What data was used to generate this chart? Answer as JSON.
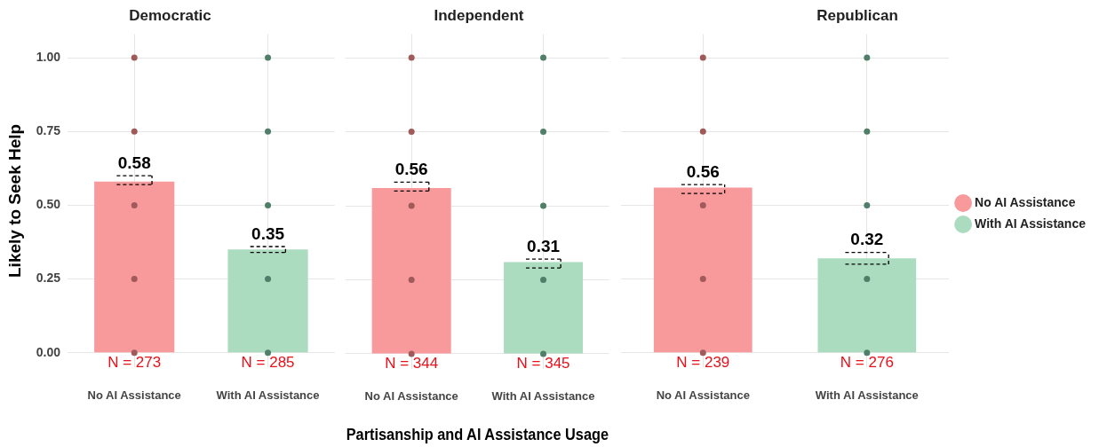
{
  "chart_data": [
    {
      "type": "bar",
      "title": "Democratic",
      "ylabel": "Likely to Seek Help",
      "categories": [
        "No AI Assistance",
        "With AI Assistance"
      ],
      "ylim": [
        -0.05,
        1.08
      ],
      "yticks": [
        {
          "value": 0,
          "label": "0.00"
        },
        {
          "value": 0.25,
          "label": "0.25"
        },
        {
          "value": 0.5,
          "label": "0.50"
        },
        {
          "value": 0.75,
          "label": "0.75"
        },
        {
          "value": 1,
          "label": "1.00"
        }
      ],
      "grid": true,
      "marker": "circle",
      "series": [
        {
          "type": "bar",
          "color": "#f8999b",
          "values": [
            0.58,
            null
          ],
          "value_labels": [
            "0.58",
            null
          ],
          "errors": [
            [
              0.57,
              0.6
            ],
            null
          ]
        },
        {
          "type": "bar",
          "color": "#acdcc0",
          "values": [
            null,
            0.35
          ],
          "value_labels": [
            null,
            "0.35"
          ],
          "errors": [
            null,
            [
              0.34,
              0.36
            ]
          ]
        },
        {
          "type": "scatter",
          "color": "#a05a5a",
          "x": [
            "No AI Assistance",
            "No AI Assistance",
            "No AI Assistance",
            "No AI Assistance",
            "No AI Assistance"
          ],
          "values": [
            1,
            0.75,
            0.5,
            0.25,
            0
          ]
        },
        {
          "type": "scatter",
          "color": "#4f7f68",
          "x": [
            "With AI Assistance",
            "With AI Assistance",
            "With AI Assistance",
            "With AI Assistance",
            "With AI Assistance"
          ],
          "values": [
            1,
            0.75,
            0.5,
            0.25,
            0
          ]
        }
      ],
      "annotations": [
        {
          "text": "N = 273",
          "x": "No AI Assistance",
          "y": 0
        },
        {
          "text": "N = 285",
          "x": "With AI Assistance",
          "y": 0
        }
      ]
    },
    {
      "type": "bar",
      "title": "Independent",
      "xlabel": "Partisanship and AI Assistance Usage",
      "categories": [
        "No AI Assistance",
        "With AI Assistance"
      ],
      "ylim": [
        -0.05,
        1.08
      ],
      "yticks": [
        0,
        0.25,
        0.5,
        0.75,
        1
      ],
      "grid": true,
      "marker": "circle",
      "tick_labels": "x",
      "series": [
        {
          "type": "bar",
          "color": "#f8999b",
          "values": [
            0.56,
            null
          ],
          "value_labels": [
            "0.56",
            null
          ],
          "errors": [
            [
              0.55,
              0.58
            ],
            null
          ]
        },
        {
          "type": "bar",
          "color": "#acdcc0",
          "values": [
            null,
            0.31
          ],
          "value_labels": [
            null,
            "0.31"
          ],
          "errors": [
            null,
            [
              0.29,
              0.32
            ]
          ]
        },
        {
          "type": "scatter",
          "color": "#a05a5a",
          "x": [
            "No AI Assistance",
            "No AI Assistance",
            "No AI Assistance",
            "No AI Assistance",
            "No AI Assistance"
          ],
          "values": [
            1,
            0.75,
            0.5,
            0.25,
            0
          ]
        },
        {
          "type": "scatter",
          "color": "#4f7f68",
          "x": [
            "With AI Assistance",
            "With AI Assistance",
            "With AI Assistance",
            "With AI Assistance",
            "With AI Assistance"
          ],
          "values": [
            1,
            0.75,
            0.5,
            0.25,
            0
          ]
        }
      ],
      "annotations": [
        {
          "text": "N = 344",
          "x": "No AI Assistance",
          "y": 0
        },
        {
          "text": "N = 345",
          "x": "With AI Assistance",
          "y": 0
        }
      ]
    },
    {
      "type": "bar",
      "title": "Republican",
      "categories": [
        "No AI Assistance",
        "With AI Assistance"
      ],
      "ylim": [
        -0.05,
        1.08
      ],
      "yticks": [
        0,
        0.25,
        0.5,
        0.75,
        1
      ],
      "grid": true,
      "marker": "circle",
      "tick_labels": "x",
      "legend": "right",
      "series": [
        {
          "type": "bar",
          "name": "No AI Assistance",
          "color": "#f8999b",
          "values": [
            0.56,
            null
          ],
          "value_labels": [
            "0.56",
            null
          ],
          "errors": [
            [
              0.54,
              0.57
            ],
            null
          ]
        },
        {
          "type": "bar",
          "name": "With AI Assistance",
          "color": "#acdcc0",
          "values": [
            null,
            0.32
          ],
          "value_labels": [
            null,
            "0.32"
          ],
          "errors": [
            null,
            [
              0.3,
              0.34
            ]
          ]
        },
        {
          "type": "scatter",
          "color": "#a05a5a",
          "x": [
            "No AI Assistance",
            "No AI Assistance",
            "No AI Assistance",
            "No AI Assistance",
            "No AI Assistance"
          ],
          "values": [
            1,
            0.75,
            0.5,
            0.25,
            0
          ]
        },
        {
          "type": "scatter",
          "color": "#4f7f68",
          "x": [
            "With AI Assistance",
            "With AI Assistance",
            "With AI Assistance",
            "With AI Assistance",
            "With AI Assistance"
          ],
          "values": [
            1,
            0.75,
            0.5,
            0.25,
            0
          ]
        }
      ],
      "annotations": [
        {
          "text": "N = 239",
          "x": "No AI Assistance",
          "y": 0
        },
        {
          "text": "N = 276",
          "x": "With AI Assistance",
          "y": 0
        }
      ]
    }
  ]
}
